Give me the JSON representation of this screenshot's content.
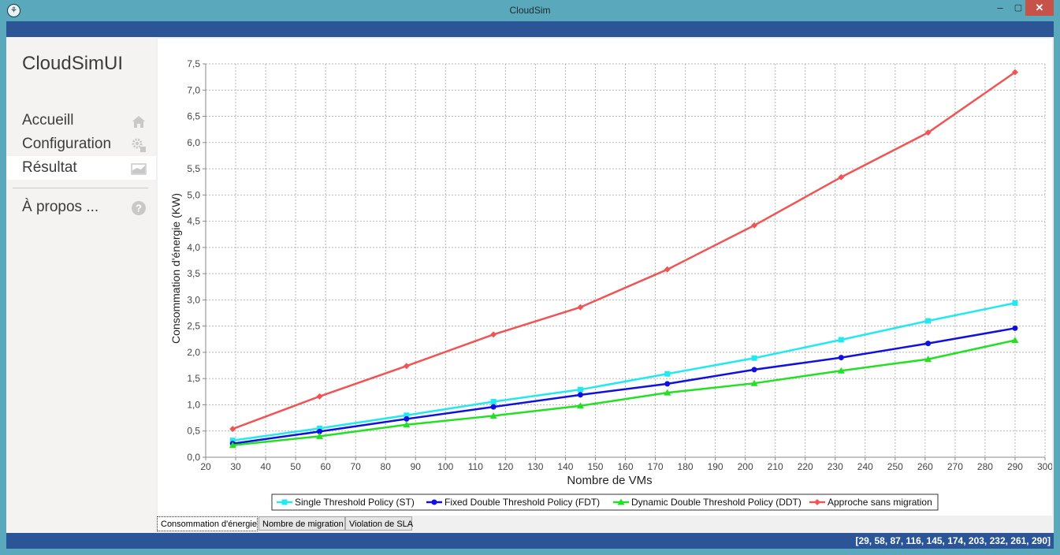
{
  "window": {
    "title": "CloudSim"
  },
  "sidebar": {
    "brand": "CloudSimUI",
    "items": [
      {
        "label": "Accueill",
        "icon": "home-icon"
      },
      {
        "label": "Configuration",
        "icon": "gears-icon"
      },
      {
        "label": "Résultat",
        "icon": "chart-area-icon",
        "active": true
      },
      {
        "label": "À propos ...",
        "icon": "question-icon"
      }
    ]
  },
  "tabs": [
    {
      "label": "Consommation d'énergie",
      "active": true
    },
    {
      "label": "Nombre de migration"
    },
    {
      "label": "Violation de SLA"
    }
  ],
  "status": {
    "text": "[29, 58, 87, 116, 145, 174, 203, 232, 261, 290]"
  },
  "chart_data": {
    "type": "line",
    "xlabel": "Nombre de VMs",
    "ylabel": "Consommation d'énergie (KW)",
    "xlim": [
      20,
      300
    ],
    "ylim": [
      0,
      7.5
    ],
    "x_ticks": [
      20,
      30,
      40,
      50,
      60,
      70,
      80,
      90,
      100,
      110,
      120,
      130,
      140,
      150,
      160,
      170,
      180,
      190,
      200,
      210,
      220,
      230,
      240,
      250,
      260,
      270,
      280,
      290,
      300
    ],
    "y_ticks": [
      "0,0",
      "0,5",
      "1,0",
      "1,5",
      "2,0",
      "2,5",
      "3,0",
      "3,5",
      "4,0",
      "4,5",
      "5,0",
      "5,5",
      "6,0",
      "6,5",
      "7,0",
      "7,5"
    ],
    "grid": true,
    "legend_position": "bottom",
    "x": [
      29,
      58,
      87,
      116,
      145,
      174,
      203,
      232,
      261,
      290
    ],
    "series": [
      {
        "name": "Single Threshold Policy (ST)",
        "color": "#22e8f0",
        "marker": "square",
        "values": [
          0.32,
          0.55,
          0.8,
          1.06,
          1.29,
          1.59,
          1.89,
          2.24,
          2.6,
          2.94
        ]
      },
      {
        "name": "Fixed Double Threshold Policy (FDT)",
        "color": "#1010e0",
        "marker": "circle",
        "values": [
          0.26,
          0.49,
          0.73,
          0.96,
          1.19,
          1.4,
          1.67,
          1.9,
          2.17,
          2.46
        ]
      },
      {
        "name": "Dynamic Double Threshold Policy (DDT)",
        "color": "#22e022",
        "marker": "triangle",
        "values": [
          0.23,
          0.4,
          0.62,
          0.79,
          0.98,
          1.23,
          1.41,
          1.65,
          1.87,
          2.23
        ]
      },
      {
        "name": "Approche sans migration",
        "color": "#f05555",
        "marker": "diamond",
        "values": [
          0.54,
          1.16,
          1.74,
          2.34,
          2.86,
          3.58,
          4.42,
          5.34,
          6.19,
          7.34
        ]
      }
    ]
  }
}
